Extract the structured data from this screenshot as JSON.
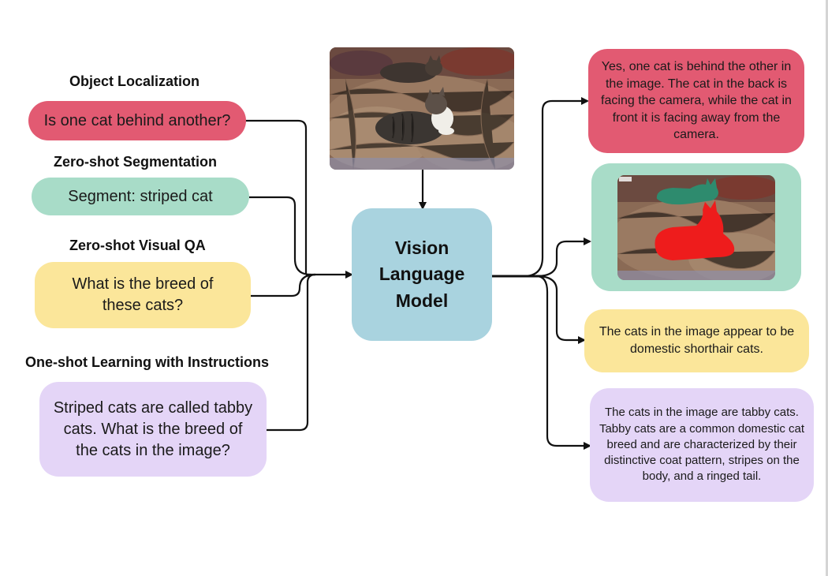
{
  "inputs": [
    {
      "title": "Object Localization",
      "prompt": "Is one cat behind another?"
    },
    {
      "title": "Zero-shot Segmentation",
      "prompt": "Segment: striped cat"
    },
    {
      "title": "Zero-shot Visual QA",
      "prompt": "What is the breed of these cats?"
    },
    {
      "title": "One-shot Learning with Instructions",
      "prompt": "Striped cats are called tabby cats. What is the breed of the cats in the image?"
    }
  ],
  "model": {
    "line1": "Vision",
    "line2": "Language",
    "line3": "Model"
  },
  "outputs": {
    "localization": "Yes, one cat is behind the other in the image. The cat in the back is facing the camera, while the cat in front it is facing away from the camera.",
    "visual_qa": "The cats in the image appear to be domestic shorthair cats.",
    "one_shot": "The cats in the image are tabby cats. Tabby cats are a common domestic cat breed and are characterized by their distinctive coat pattern,  stripes on the body, and a ringed tail."
  },
  "colors": {
    "localization": "#e25a72",
    "segmentation": "#a8dcc8",
    "visual_qa": "#fbe69a",
    "one_shot": "#e4d5f7",
    "model": "#a9d3df",
    "mask_back_cat": "#2e8b6e",
    "mask_front_cat": "#ee1c1c"
  },
  "images": {
    "input_photo": "photo-two-cats-on-fishing-nets",
    "segmented_photo": "photo-cats-with-segmentation-masks"
  }
}
